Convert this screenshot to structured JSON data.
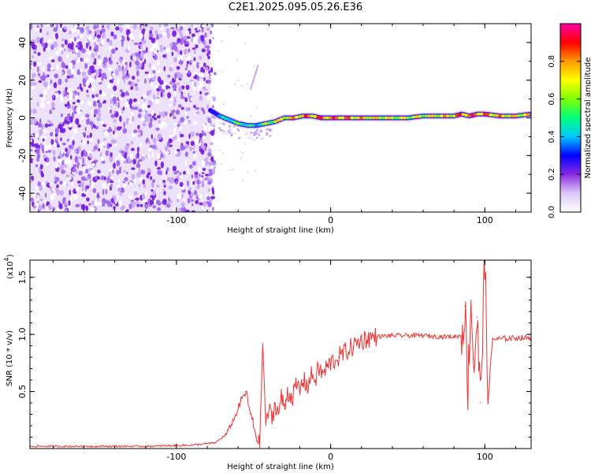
{
  "title": "C2E1.2025.095.05.26.E36",
  "chart_data": [
    {
      "type": "heatmap",
      "title": "C2E1.2025.095.05.26.E36",
      "xlabel": "Height of straight line (km)",
      "ylabel": "Frequency (Hz)",
      "xlim": [
        -195,
        130
      ],
      "ylim": [
        -50,
        50
      ],
      "x_ticks": [
        "-100",
        "0",
        "100"
      ],
      "y_ticks": [
        "-40",
        "-20",
        "0",
        "20",
        "40"
      ],
      "colorbar": {
        "label": "Normalized spectral amplitude",
        "range": [
          0.0,
          1.0
        ],
        "ticks": [
          "0.0",
          "0.2",
          "0.4",
          "0.6",
          "0.8"
        ],
        "colors": [
          "#ffffff",
          "#dcc8f5",
          "#8a2be2",
          "#0000ff",
          "#00c8ff",
          "#00ff7f",
          "#7fff00",
          "#ffff00",
          "#ff9900",
          "#ff0000",
          "#ff00aa"
        ]
      },
      "noise_region_x": [
        -195,
        -78
      ],
      "ridge": {
        "x": [
          -78,
          -72,
          -66,
          -60,
          -54,
          -48,
          -42,
          -36,
          -30,
          -24,
          -18,
          -12,
          -6,
          0,
          10,
          20,
          30,
          40,
          50,
          60,
          70,
          80,
          85,
          90,
          95,
          100,
          110,
          120,
          130
        ],
        "y": [
          4,
          1,
          -1,
          -3,
          -4,
          -4,
          -3,
          -2,
          0,
          0,
          1,
          1,
          0,
          0,
          0,
          0,
          0,
          0,
          0,
          1,
          1,
          1,
          2,
          1,
          2,
          2,
          1,
          1,
          2
        ],
        "amplitude": [
          0.3,
          0.45,
          0.55,
          0.6,
          0.55,
          0.5,
          0.65,
          0.75,
          0.8,
          0.85,
          0.9,
          0.9,
          0.95,
          0.95,
          0.9,
          0.85,
          0.8,
          0.75,
          0.75,
          0.75,
          0.8,
          0.85,
          0.95,
          0.95,
          0.95,
          0.9,
          0.85,
          0.8,
          0.8
        ]
      },
      "spur": {
        "x": [
          -52,
          -47
        ],
        "y": [
          15,
          28
        ]
      }
    },
    {
      "type": "line",
      "xlabel": "Height of straight line (km)",
      "ylabel": "SNR (10 * v/v)",
      "y_multiplier": "(x10",
      "y_exponent": "4",
      "xlim": [
        -195,
        130
      ],
      "ylim": [
        0,
        1.65
      ],
      "x_ticks": [
        "-100",
        "0",
        "100"
      ],
      "y_ticks": [
        "0.5",
        "1.0",
        "1.5"
      ],
      "series": [
        {
          "color": "#ee3333",
          "x": [
            -195,
            -160,
            -120,
            -90,
            -75,
            -68,
            -62,
            -58,
            -55,
            -52,
            -50,
            -48,
            -46,
            -44,
            -42,
            -40,
            -38,
            -36,
            -34,
            -32,
            -30,
            -28,
            -25,
            -22,
            -20,
            -18,
            -15,
            -12,
            -10,
            -8,
            -5,
            -2,
            0,
            5,
            10,
            15,
            20,
            25,
            30,
            40,
            50,
            60,
            70,
            80,
            85,
            87,
            89,
            91,
            93,
            95,
            97,
            99,
            100,
            102,
            105,
            110,
            120,
            130
          ],
          "y": [
            0.02,
            0.02,
            0.02,
            0.03,
            0.05,
            0.12,
            0.28,
            0.42,
            0.5,
            0.3,
            0.2,
            0.1,
            0.05,
            0.92,
            0.2,
            0.35,
            0.25,
            0.4,
            0.3,
            0.45,
            0.35,
            0.5,
            0.45,
            0.55,
            0.5,
            0.6,
            0.55,
            0.65,
            0.6,
            0.7,
            0.65,
            0.72,
            0.75,
            0.8,
            0.85,
            0.9,
            0.95,
            0.97,
            0.98,
            0.99,
            0.99,
            0.99,
            0.98,
            0.98,
            0.99,
            1.25,
            0.55,
            1.3,
            0.7,
            1.15,
            0.4,
            1.3,
            1.6,
            0.4,
            0.96,
            0.96,
            0.97,
            0.97
          ]
        }
      ]
    }
  ]
}
